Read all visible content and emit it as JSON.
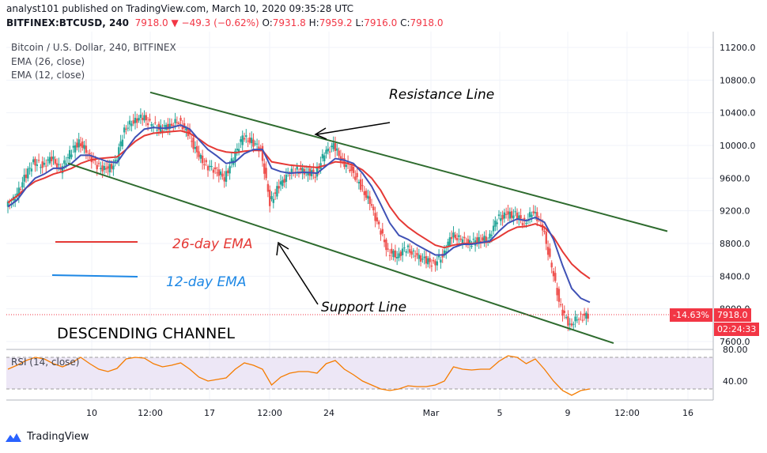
{
  "header": {
    "line1": "analyst101 published on TradingView.com, March 10, 2020 09:35:28 UTC",
    "symbol": "BITFINEX:BTCUSD, 240",
    "last": "7918.0",
    "change": "▼ −49.3 (−0.62%)",
    "o_label": "O:",
    "o": "7931.8",
    "h_label": "H:",
    "h": "7959.2",
    "l_label": "L:",
    "l": "7916.0",
    "c_label": "C:",
    "c": "7918.0"
  },
  "legend": {
    "title": "Bitcoin / U.S. Dollar, 240, BITFINEX",
    "ema26": "EMA (26, close)",
    "ema12": "EMA (12, close)"
  },
  "annotations": {
    "resistance": "Resistance Line",
    "support": "Support Line",
    "ema26_key": "26-day EMA",
    "ema12_key": "12-day EMA",
    "channel": "DESCENDING CHANNEL"
  },
  "price_tags": {
    "pct": "-14.63%",
    "price": "7918.0",
    "countdown": "02:24:33"
  },
  "rsi": {
    "label": "RSI (14, close)"
  },
  "footer": {
    "brand": "TradingView"
  },
  "colors": {
    "up": "#26a69a",
    "down": "#ef5350",
    "ema26": "#e53935",
    "ema12": "#3f51b5",
    "channel": "#2e6b2e",
    "rsi_line": "#f57c00",
    "rsi_band": "#ede7f6"
  },
  "chart_data": [
    {
      "type": "candlestick",
      "title": "Bitcoin / U.S. Dollar, 240, BITFINEX",
      "ylim": [
        7500,
        11400
      ],
      "y_ticks": [
        11200,
        10800,
        10400,
        10000,
        9600,
        9200,
        8800,
        8400,
        8000,
        7600
      ],
      "y_tick_labels": [
        "11200.0",
        "10800.0",
        "10400.0",
        "10000.0",
        "9600.0",
        "9200.0",
        "8800.0",
        "8400.0",
        "8000.0",
        "7600.0"
      ],
      "x_tick_labels": [
        "10",
        "12:00",
        "17",
        "12:00",
        "24",
        "Mar",
        "5",
        "9",
        "12:00",
        "16"
      ],
      "close_path": [
        9250,
        9350,
        9600,
        9800,
        9750,
        9850,
        9700,
        9900,
        10050,
        9900,
        9750,
        9700,
        9780,
        10200,
        10300,
        10350,
        10250,
        10200,
        10250,
        10300,
        10150,
        9900,
        9750,
        9700,
        9600,
        9850,
        10100,
        10050,
        9950,
        9300,
        9500,
        9650,
        9700,
        9680,
        9650,
        9900,
        10000,
        9800,
        9700,
        9500,
        9300,
        9000,
        8700,
        8650,
        8750,
        8650,
        8600,
        8550,
        8650,
        8900,
        8850,
        8800,
        8850,
        8850,
        9100,
        9150,
        9150,
        9050,
        9200,
        9000,
        8500,
        8000,
        7800,
        7900,
        7918
      ],
      "series": [
        {
          "name": "EMA (26, close)",
          "values": [
            9300,
            9380,
            9480,
            9560,
            9600,
            9650,
            9680,
            9720,
            9780,
            9820,
            9840,
            9850,
            9860,
            9950,
            10050,
            10120,
            10150,
            10160,
            10170,
            10180,
            10150,
            10080,
            10000,
            9950,
            9920,
            9910,
            9930,
            9940,
            9940,
            9800,
            9780,
            9760,
            9750,
            9740,
            9730,
            9760,
            9800,
            9790,
            9760,
            9700,
            9600,
            9450,
            9250,
            9100,
            9000,
            8920,
            8850,
            8780,
            8750,
            8780,
            8800,
            8800,
            8810,
            8820,
            8880,
            8950,
            9000,
            9010,
            9040,
            9000,
            8880,
            8700,
            8550,
            8450,
            8370
          ]
        },
        {
          "name": "EMA (12, close)",
          "values": [
            9250,
            9330,
            9480,
            9600,
            9650,
            9720,
            9720,
            9780,
            9880,
            9880,
            9840,
            9800,
            9790,
            9950,
            10100,
            10200,
            10220,
            10210,
            10220,
            10250,
            10200,
            10070,
            9950,
            9870,
            9780,
            9800,
            9900,
            9950,
            9950,
            9720,
            9680,
            9660,
            9670,
            9670,
            9660,
            9750,
            9840,
            9820,
            9780,
            9660,
            9500,
            9280,
            9050,
            8900,
            8850,
            8780,
            8720,
            8660,
            8660,
            8750,
            8790,
            8790,
            8810,
            8830,
            8950,
            9050,
            9100,
            9080,
            9120,
            9060,
            8850,
            8530,
            8250,
            8130,
            8080
          ]
        }
      ],
      "lines": [
        {
          "name": "Resistance Line",
          "from": [
            "12:00",
            10650
          ],
          "to": [
            "16",
            8950
          ]
        },
        {
          "name": "Support Line",
          "from": [
            "10",
            9780
          ],
          "to": [
            "16",
            7580
          ]
        }
      ],
      "last_price_pct": "-14.63%",
      "last_price": 7918
    },
    {
      "type": "line",
      "title": "RSI (14, close)",
      "ylim": [
        20,
        80
      ],
      "y_ticks": [
        80,
        40
      ],
      "y_tick_labels": [
        "80.00",
        "40.00"
      ],
      "band": [
        30,
        70
      ],
      "values": [
        55,
        60,
        66,
        70,
        68,
        62,
        58,
        63,
        70,
        62,
        55,
        52,
        56,
        68,
        70,
        69,
        62,
        58,
        60,
        63,
        55,
        45,
        40,
        42,
        44,
        55,
        63,
        60,
        55,
        35,
        45,
        50,
        52,
        52,
        50,
        62,
        66,
        55,
        48,
        40,
        35,
        30,
        28,
        30,
        34,
        33,
        33,
        35,
        40,
        58,
        55,
        54,
        55,
        55,
        65,
        72,
        70,
        62,
        68,
        55,
        40,
        28,
        22,
        28,
        30
      ]
    }
  ]
}
